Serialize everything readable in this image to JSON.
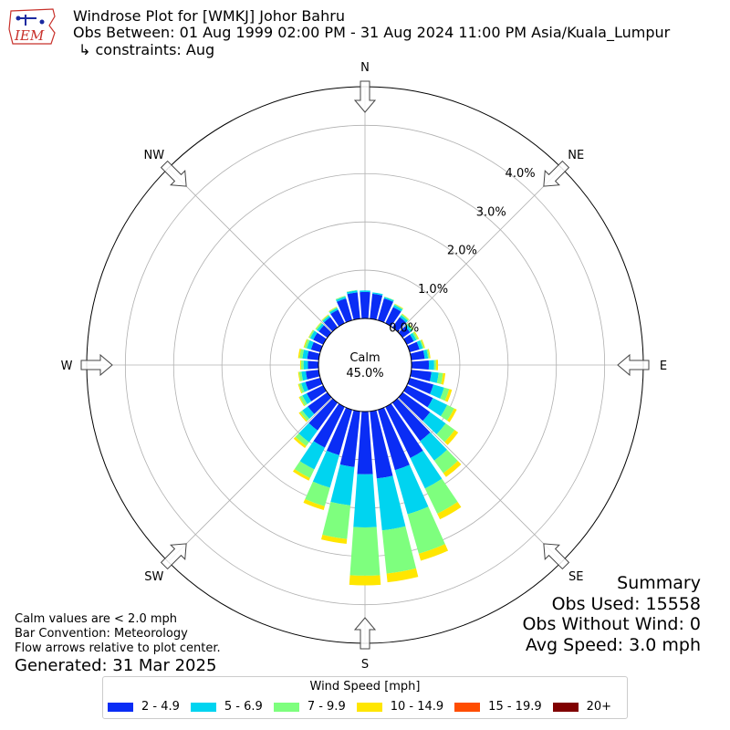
{
  "header": {
    "title": "Windrose Plot for [WMKJ] Johor Bahru",
    "obs_between": "Obs Between: 01 Aug 1999 02:00 PM - 31 Aug 2024 11:00 PM Asia/Kuala_Lumpur",
    "constraints": "↳ constraints: Aug",
    "logo_text": "IEM"
  },
  "summary": {
    "title": "Summary",
    "obs_used": "Obs Used: 15558",
    "obs_without_wind": "Obs Without Wind: 0",
    "avg_speed": "Avg Speed: 3.0 mph"
  },
  "notes": {
    "calm_values": "Calm values are < 2.0 mph",
    "bar_convention": "Bar Convention: Meteorology",
    "flow_arrows": "Flow arrows relative to plot center.",
    "generated": "Generated: 31 Mar 2025"
  },
  "legend": {
    "title": "Wind Speed [mph]",
    "items": [
      {
        "label": "2 - 4.9",
        "color": "#0a2df5"
      },
      {
        "label": "5 - 6.9",
        "color": "#00d4f0"
      },
      {
        "label": "7 - 9.9",
        "color": "#7eff7e"
      },
      {
        "label": "10 - 14.9",
        "color": "#ffe600"
      },
      {
        "label": "15 - 19.9",
        "color": "#ff4d00"
      },
      {
        "label": "20+",
        "color": "#800000"
      }
    ]
  },
  "chart_data": {
    "type": "windrose",
    "calm_label": "Calm",
    "calm_value": "45.0%",
    "radial_ticks": [
      "0.0%",
      "1.0%",
      "2.0%",
      "3.0%",
      "4.0%"
    ],
    "radial_tick_values": [
      0,
      1,
      2,
      3,
      4
    ],
    "rmax": 4.8,
    "compass_labels": [
      "N",
      "NE",
      "E",
      "SE",
      "S",
      "SW",
      "W",
      "NW"
    ],
    "compass_angles": [
      0,
      45,
      90,
      135,
      180,
      225,
      270,
      315
    ],
    "speed_bins": [
      "2 - 4.9",
      "5 - 6.9",
      "7 - 9.9",
      "10 - 14.9",
      "15 - 19.9",
      "20+"
    ],
    "bin_colors": [
      "#0a2df5",
      "#00d4f0",
      "#7eff7e",
      "#ffe600",
      "#ff4d00",
      "#800000"
    ],
    "direction_degrees": [
      0,
      10,
      20,
      30,
      40,
      50,
      60,
      70,
      80,
      90,
      100,
      110,
      120,
      130,
      140,
      150,
      160,
      170,
      180,
      190,
      200,
      210,
      220,
      230,
      240,
      250,
      260,
      270,
      280,
      290,
      300,
      310,
      320,
      330,
      340,
      350
    ],
    "values": [
      [
        0.55,
        0.03,
        0,
        0,
        0,
        0
      ],
      [
        0.52,
        0.03,
        0,
        0,
        0,
        0
      ],
      [
        0.47,
        0.03,
        0.01,
        0,
        0,
        0
      ],
      [
        0.37,
        0.05,
        0.02,
        0.01,
        0,
        0
      ],
      [
        0.26,
        0.05,
        0.03,
        0.01,
        0,
        0
      ],
      [
        0.19,
        0.05,
        0.04,
        0.01,
        0,
        0
      ],
      [
        0.16,
        0.06,
        0.04,
        0.02,
        0,
        0
      ],
      [
        0.21,
        0.07,
        0.03,
        0.02,
        0,
        0
      ],
      [
        0.28,
        0.07,
        0.03,
        0.02,
        0,
        0
      ],
      [
        0.36,
        0.11,
        0.04,
        0.04,
        0,
        0
      ],
      [
        0.42,
        0.15,
        0.09,
        0.05,
        0,
        0
      ],
      [
        0.51,
        0.23,
        0.11,
        0.06,
        0,
        0
      ],
      [
        0.6,
        0.33,
        0.16,
        0.06,
        0,
        0
      ],
      [
        0.7,
        0.4,
        0.23,
        0.09,
        0,
        0
      ],
      [
        0.98,
        0.5,
        0.32,
        0.1,
        0,
        0
      ],
      [
        1.18,
        0.7,
        0.58,
        0.13,
        0,
        0
      ],
      [
        1.3,
        0.95,
        0.85,
        0.15,
        0,
        0
      ],
      [
        1.4,
        1.08,
        0.9,
        0.18,
        0,
        0
      ],
      [
        1.3,
        1.1,
        1.0,
        0.2,
        0,
        0
      ],
      [
        1.16,
        0.8,
        0.7,
        0.1,
        0,
        0
      ],
      [
        0.98,
        0.7,
        0.4,
        0.08,
        0,
        0
      ],
      [
        0.94,
        0.5,
        0.2,
        0.06,
        0,
        0
      ],
      [
        0.71,
        0.3,
        0.1,
        0.05,
        0,
        0
      ],
      [
        0.5,
        0.14,
        0.06,
        0.03,
        0,
        0
      ],
      [
        0.38,
        0.1,
        0.06,
        0.02,
        0,
        0
      ],
      [
        0.32,
        0.09,
        0.05,
        0.02,
        0,
        0
      ],
      [
        0.27,
        0.09,
        0.05,
        0.02,
        0,
        0
      ],
      [
        0.22,
        0.09,
        0.05,
        0.02,
        0,
        0
      ],
      [
        0.24,
        0.1,
        0.06,
        0.03,
        0,
        0
      ],
      [
        0.2,
        0.09,
        0.05,
        0.02,
        0,
        0
      ],
      [
        0.23,
        0.07,
        0.03,
        0.01,
        0,
        0
      ],
      [
        0.22,
        0.05,
        0.03,
        0.01,
        0,
        0
      ],
      [
        0.26,
        0.04,
        0.02,
        0.01,
        0,
        0
      ],
      [
        0.31,
        0.04,
        0.02,
        0.01,
        0,
        0
      ],
      [
        0.47,
        0.04,
        0.02,
        0,
        0,
        0
      ],
      [
        0.55,
        0.04,
        0.01,
        0,
        0,
        0
      ]
    ]
  }
}
